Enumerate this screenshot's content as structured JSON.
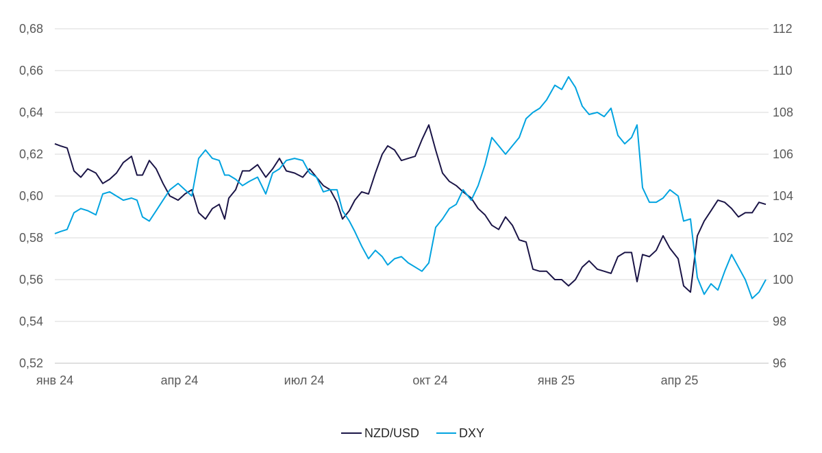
{
  "chart_data": {
    "type": "line",
    "title": "",
    "xlabel": "",
    "ylabel_left": "",
    "ylabel_right": "",
    "grid": true,
    "legend_position": "bottom-center",
    "x_ticks": [
      "янв 24",
      "апр 24",
      "июл 24",
      "окт 24",
      "янв 25",
      "апр 25"
    ],
    "y_left": {
      "ylim": [
        0.52,
        0.68
      ],
      "ticks": [
        "0,52",
        "0,54",
        "0,56",
        "0,58",
        "0,60",
        "0,62",
        "0,64",
        "0,66",
        "0,68"
      ]
    },
    "y_right": {
      "ylim": [
        96,
        112
      ],
      "ticks": [
        "96",
        "98",
        "100",
        "102",
        "104",
        "106",
        "108",
        "110",
        "112"
      ]
    },
    "series": [
      {
        "name": "NZD/USD",
        "axis": "left",
        "color": "#1a1446",
        "points": [
          [
            "2024-01-01",
            0.625
          ],
          [
            "2024-01-05",
            0.624
          ],
          [
            "2024-01-10",
            0.623
          ],
          [
            "2024-01-15",
            0.612
          ],
          [
            "2024-01-20",
            0.609
          ],
          [
            "2024-01-25",
            0.613
          ],
          [
            "2024-01-31",
            0.611
          ],
          [
            "2024-02-05",
            0.606
          ],
          [
            "2024-02-10",
            0.608
          ],
          [
            "2024-02-15",
            0.611
          ],
          [
            "2024-02-20",
            0.616
          ],
          [
            "2024-02-26",
            0.619
          ],
          [
            "2024-03-01",
            0.61
          ],
          [
            "2024-03-05",
            0.61
          ],
          [
            "2024-03-10",
            0.617
          ],
          [
            "2024-03-15",
            0.613
          ],
          [
            "2024-03-20",
            0.606
          ],
          [
            "2024-03-25",
            0.6
          ],
          [
            "2024-03-31",
            0.598
          ],
          [
            "2024-04-05",
            0.601
          ],
          [
            "2024-04-10",
            0.603
          ],
          [
            "2024-04-15",
            0.592
          ],
          [
            "2024-04-20",
            0.589
          ],
          [
            "2024-04-25",
            0.594
          ],
          [
            "2024-04-30",
            0.596
          ],
          [
            "2024-05-04",
            0.589
          ],
          [
            "2024-05-07",
            0.599
          ],
          [
            "2024-05-12",
            0.603
          ],
          [
            "2024-05-17",
            0.612
          ],
          [
            "2024-05-22",
            0.612
          ],
          [
            "2024-05-28",
            0.615
          ],
          [
            "2024-06-03",
            0.609
          ],
          [
            "2024-06-08",
            0.613
          ],
          [
            "2024-06-13",
            0.618
          ],
          [
            "2024-06-18",
            0.612
          ],
          [
            "2024-06-24",
            0.611
          ],
          [
            "2024-06-30",
            0.609
          ],
          [
            "2024-07-05",
            0.613
          ],
          [
            "2024-07-10",
            0.609
          ],
          [
            "2024-07-15",
            0.605
          ],
          [
            "2024-07-20",
            0.603
          ],
          [
            "2024-07-25",
            0.597
          ],
          [
            "2024-07-29",
            0.589
          ],
          [
            "2024-08-03",
            0.593
          ],
          [
            "2024-08-07",
            0.598
          ],
          [
            "2024-08-12",
            0.602
          ],
          [
            "2024-08-17",
            0.601
          ],
          [
            "2024-08-22",
            0.611
          ],
          [
            "2024-08-27",
            0.62
          ],
          [
            "2024-08-31",
            0.624
          ],
          [
            "2024-09-05",
            0.622
          ],
          [
            "2024-09-10",
            0.617
          ],
          [
            "2024-09-15",
            0.618
          ],
          [
            "2024-09-20",
            0.619
          ],
          [
            "2024-09-25",
            0.627
          ],
          [
            "2024-09-30",
            0.634
          ],
          [
            "2024-10-05",
            0.622
          ],
          [
            "2024-10-10",
            0.611
          ],
          [
            "2024-10-15",
            0.607
          ],
          [
            "2024-10-20",
            0.605
          ],
          [
            "2024-10-25",
            0.602
          ],
          [
            "2024-10-31",
            0.599
          ],
          [
            "2024-11-05",
            0.594
          ],
          [
            "2024-11-10",
            0.591
          ],
          [
            "2024-11-15",
            0.586
          ],
          [
            "2024-11-20",
            0.584
          ],
          [
            "2024-11-25",
            0.59
          ],
          [
            "2024-11-30",
            0.586
          ],
          [
            "2024-12-05",
            0.579
          ],
          [
            "2024-12-10",
            0.578
          ],
          [
            "2024-12-15",
            0.565
          ],
          [
            "2024-12-20",
            0.564
          ],
          [
            "2024-12-25",
            0.564
          ],
          [
            "2024-12-31",
            0.56
          ],
          [
            "2025-01-05",
            0.56
          ],
          [
            "2025-01-10",
            0.557
          ],
          [
            "2025-01-15",
            0.56
          ],
          [
            "2025-01-20",
            0.566
          ],
          [
            "2025-01-25",
            0.569
          ],
          [
            "2025-01-31",
            0.565
          ],
          [
            "2025-02-05",
            0.564
          ],
          [
            "2025-02-10",
            0.563
          ],
          [
            "2025-02-15",
            0.571
          ],
          [
            "2025-02-20",
            0.573
          ],
          [
            "2025-02-25",
            0.573
          ],
          [
            "2025-03-01",
            0.559
          ],
          [
            "2025-03-05",
            0.572
          ],
          [
            "2025-03-10",
            0.571
          ],
          [
            "2025-03-15",
            0.574
          ],
          [
            "2025-03-20",
            0.581
          ],
          [
            "2025-03-25",
            0.575
          ],
          [
            "2025-03-31",
            0.57
          ],
          [
            "2025-04-04",
            0.557
          ],
          [
            "2025-04-09",
            0.554
          ],
          [
            "2025-04-14",
            0.581
          ],
          [
            "2025-04-19",
            0.588
          ],
          [
            "2025-04-24",
            0.593
          ],
          [
            "2025-04-29",
            0.598
          ],
          [
            "2025-05-04",
            0.597
          ],
          [
            "2025-05-09",
            0.594
          ],
          [
            "2025-05-14",
            0.59
          ],
          [
            "2025-05-19",
            0.592
          ],
          [
            "2025-05-24",
            0.592
          ],
          [
            "2025-05-29",
            0.597
          ],
          [
            "2025-06-03",
            0.596
          ]
        ]
      },
      {
        "name": "DXY",
        "axis": "right",
        "color": "#00a3e0",
        "points": [
          [
            "2024-01-01",
            102.2
          ],
          [
            "2024-01-05",
            102.3
          ],
          [
            "2024-01-10",
            102.4
          ],
          [
            "2024-01-15",
            103.2
          ],
          [
            "2024-01-20",
            103.4
          ],
          [
            "2024-01-25",
            103.3
          ],
          [
            "2024-01-31",
            103.1
          ],
          [
            "2024-02-05",
            104.1
          ],
          [
            "2024-02-10",
            104.2
          ],
          [
            "2024-02-15",
            104.0
          ],
          [
            "2024-02-20",
            103.8
          ],
          [
            "2024-02-26",
            103.9
          ],
          [
            "2024-03-01",
            103.8
          ],
          [
            "2024-03-05",
            103.0
          ],
          [
            "2024-03-10",
            102.8
          ],
          [
            "2024-03-15",
            103.3
          ],
          [
            "2024-03-20",
            103.8
          ],
          [
            "2024-03-25",
            104.3
          ],
          [
            "2024-03-31",
            104.6
          ],
          [
            "2024-04-05",
            104.3
          ],
          [
            "2024-04-10",
            104.0
          ],
          [
            "2024-04-15",
            105.8
          ],
          [
            "2024-04-20",
            106.2
          ],
          [
            "2024-04-25",
            105.8
          ],
          [
            "2024-04-30",
            105.7
          ],
          [
            "2024-05-04",
            105.0
          ],
          [
            "2024-05-07",
            105.0
          ],
          [
            "2024-05-12",
            104.8
          ],
          [
            "2024-05-17",
            104.5
          ],
          [
            "2024-05-22",
            104.7
          ],
          [
            "2024-05-28",
            104.9
          ],
          [
            "2024-06-03",
            104.1
          ],
          [
            "2024-06-08",
            105.1
          ],
          [
            "2024-06-13",
            105.3
          ],
          [
            "2024-06-18",
            105.7
          ],
          [
            "2024-06-24",
            105.8
          ],
          [
            "2024-06-30",
            105.7
          ],
          [
            "2024-07-05",
            105.1
          ],
          [
            "2024-07-10",
            104.9
          ],
          [
            "2024-07-15",
            104.2
          ],
          [
            "2024-07-20",
            104.3
          ],
          [
            "2024-07-25",
            104.3
          ],
          [
            "2024-07-29",
            103.3
          ],
          [
            "2024-08-03",
            102.8
          ],
          [
            "2024-08-07",
            102.3
          ],
          [
            "2024-08-12",
            101.6
          ],
          [
            "2024-08-17",
            101.0
          ],
          [
            "2024-08-22",
            101.4
          ],
          [
            "2024-08-27",
            101.1
          ],
          [
            "2024-08-31",
            100.7
          ],
          [
            "2024-09-05",
            101.0
          ],
          [
            "2024-09-10",
            101.1
          ],
          [
            "2024-09-15",
            100.8
          ],
          [
            "2024-09-20",
            100.6
          ],
          [
            "2024-09-25",
            100.4
          ],
          [
            "2024-09-30",
            100.8
          ],
          [
            "2024-10-05",
            102.5
          ],
          [
            "2024-10-10",
            102.9
          ],
          [
            "2024-10-15",
            103.4
          ],
          [
            "2024-10-20",
            103.6
          ],
          [
            "2024-10-25",
            104.3
          ],
          [
            "2024-10-31",
            103.8
          ],
          [
            "2024-11-05",
            104.5
          ],
          [
            "2024-11-10",
            105.5
          ],
          [
            "2024-11-15",
            106.8
          ],
          [
            "2024-11-20",
            106.4
          ],
          [
            "2024-11-25",
            106.0
          ],
          [
            "2024-11-30",
            106.4
          ],
          [
            "2024-12-05",
            106.8
          ],
          [
            "2024-12-10",
            107.7
          ],
          [
            "2024-12-15",
            108.0
          ],
          [
            "2024-12-20",
            108.2
          ],
          [
            "2024-12-25",
            108.6
          ],
          [
            "2024-12-31",
            109.3
          ],
          [
            "2025-01-05",
            109.1
          ],
          [
            "2025-01-10",
            109.7
          ],
          [
            "2025-01-15",
            109.2
          ],
          [
            "2025-01-20",
            108.3
          ],
          [
            "2025-01-25",
            107.9
          ],
          [
            "2025-01-31",
            108.0
          ],
          [
            "2025-02-05",
            107.8
          ],
          [
            "2025-02-10",
            108.2
          ],
          [
            "2025-02-15",
            106.9
          ],
          [
            "2025-02-20",
            106.5
          ],
          [
            "2025-02-25",
            106.8
          ],
          [
            "2025-03-01",
            107.4
          ],
          [
            "2025-03-05",
            104.4
          ],
          [
            "2025-03-10",
            103.7
          ],
          [
            "2025-03-15",
            103.7
          ],
          [
            "2025-03-20",
            103.9
          ],
          [
            "2025-03-25",
            104.3
          ],
          [
            "2025-03-31",
            104.0
          ],
          [
            "2025-04-04",
            102.8
          ],
          [
            "2025-04-09",
            102.9
          ],
          [
            "2025-04-14",
            100.1
          ],
          [
            "2025-04-19",
            99.3
          ],
          [
            "2025-04-24",
            99.8
          ],
          [
            "2025-04-29",
            99.5
          ],
          [
            "2025-05-04",
            100.4
          ],
          [
            "2025-05-09",
            101.2
          ],
          [
            "2025-05-14",
            100.6
          ],
          [
            "2025-05-19",
            100.0
          ],
          [
            "2025-05-24",
            99.1
          ],
          [
            "2025-05-29",
            99.4
          ],
          [
            "2025-06-03",
            100.0
          ]
        ]
      }
    ]
  }
}
